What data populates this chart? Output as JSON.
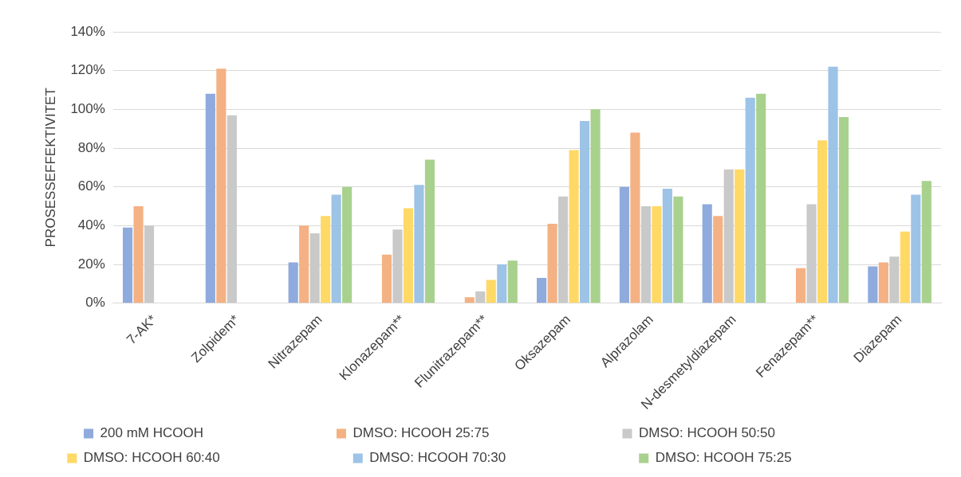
{
  "chart_data": {
    "type": "bar",
    "ylabel": "PROSESSEFFEKTIVITET",
    "categories": [
      "7-AK*",
      "Zolpidem*",
      "Nitrazepam",
      "Klonazepam**",
      "Flunitrazepam**",
      "Oksazepam",
      "Alprazolam",
      "N-desmetyldiazepam",
      "Fenazepam**",
      "Diazepam"
    ],
    "series": [
      {
        "name": "200 mM HCOOH",
        "color": "#8faadc",
        "values": [
          39,
          108,
          21,
          null,
          null,
          13,
          60,
          51,
          null,
          19
        ]
      },
      {
        "name": "DMSO: HCOOH 25:75",
        "color": "#f4b183",
        "values": [
          50,
          121,
          40,
          25,
          3,
          41,
          88,
          45,
          18,
          21
        ]
      },
      {
        "name": "DMSO: HCOOH 50:50",
        "color": "#c9c9c9",
        "values": [
          40,
          97,
          36,
          38,
          6,
          55,
          50,
          69,
          51,
          24
        ]
      },
      {
        "name": "DMSO: HCOOH 60:40",
        "color": "#ffd966",
        "values": [
          null,
          null,
          45,
          49,
          12,
          79,
          50,
          69,
          84,
          37
        ]
      },
      {
        "name": "DMSO: HCOOH 70:30",
        "color": "#9dc3e6",
        "values": [
          null,
          null,
          56,
          61,
          20,
          94,
          59,
          106,
          122,
          56
        ]
      },
      {
        "name": "DMSO: HCOOH 75:25",
        "color": "#a9d18e",
        "values": [
          null,
          null,
          60,
          74,
          22,
          100,
          55,
          108,
          96,
          63
        ]
      }
    ],
    "ylim": [
      0,
      140
    ],
    "yticks": [
      {
        "value": 0,
        "label": "0%"
      },
      {
        "value": 20,
        "label": "20%"
      },
      {
        "value": 40,
        "label": "40%"
      },
      {
        "value": 60,
        "label": "60%"
      },
      {
        "value": 80,
        "label": "80%"
      },
      {
        "value": 100,
        "label": "100%"
      },
      {
        "value": 120,
        "label": "120%"
      },
      {
        "value": 140,
        "label": "140%"
      }
    ],
    "grid": "y",
    "legend": "bottom"
  }
}
